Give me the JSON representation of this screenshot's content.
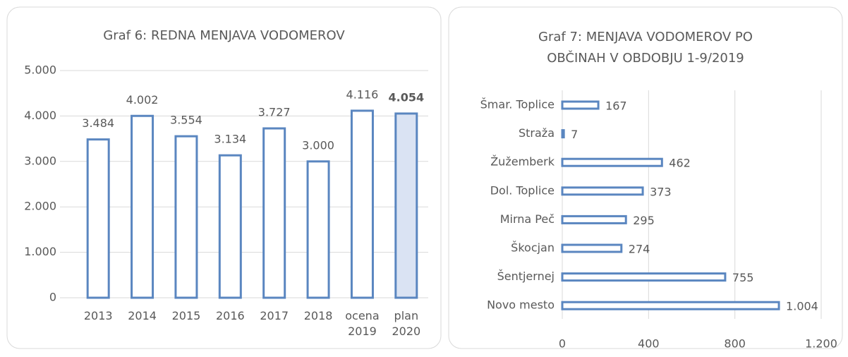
{
  "chart_data": [
    {
      "type": "bar",
      "title": "Graf 6: REDNA MENJAVA VODOMEROV",
      "categories": [
        "2013",
        "2014",
        "2015",
        "2016",
        "2017",
        "2018",
        "ocena 2019",
        "plan 2020"
      ],
      "values": [
        3484,
        4002,
        3554,
        3134,
        3727,
        3000,
        4116,
        4054
      ],
      "value_labels": [
        "3.484",
        "4.002",
        "3.554",
        "3.134",
        "3.727",
        "3.000",
        "4.116",
        "4.054"
      ],
      "color": "#5a86c0",
      "fills": [
        "#ffffff",
        "#ffffff",
        "#ffffff",
        "#ffffff",
        "#ffffff",
        "#ffffff",
        "#ffffff",
        "#dae3f3"
      ],
      "ylim": [
        0,
        5000
      ],
      "yticks": [
        0,
        {
          "value": 1000,
          "label": "1.000"
        },
        {
          "value": 2000,
          "label": "2.000"
        },
        {
          "value": 3000,
          "label": "3.000"
        },
        {
          "value": 4000,
          "label": "4.000"
        },
        {
          "value": 5000,
          "label": "5.000"
        }
      ],
      "grid": true
    },
    {
      "type": "hbar",
      "title": "Graf 7: MENJAVA VODOMEROV   PO\nOBČINAH   V OBDOBJU 1-9/2019",
      "categories": [
        "Šmar. Toplice",
        "Straža",
        "Žužemberk",
        "Dol. Toplice",
        "Mirna Peč",
        "Škocjan",
        "Šentjernej",
        "Novo mesto"
      ],
      "values": [
        167,
        7,
        462,
        373,
        295,
        274,
        755,
        1004
      ],
      "value_labels": [
        "167",
        "7",
        "462",
        "373",
        "295",
        "274",
        "755",
        "1.004"
      ],
      "color": "#5a86c0",
      "xlim": [
        0,
        1200
      ],
      "xticks": [
        0,
        400,
        800,
        {
          "value": 1200,
          "label": "1.200"
        }
      ],
      "grid": true
    }
  ]
}
